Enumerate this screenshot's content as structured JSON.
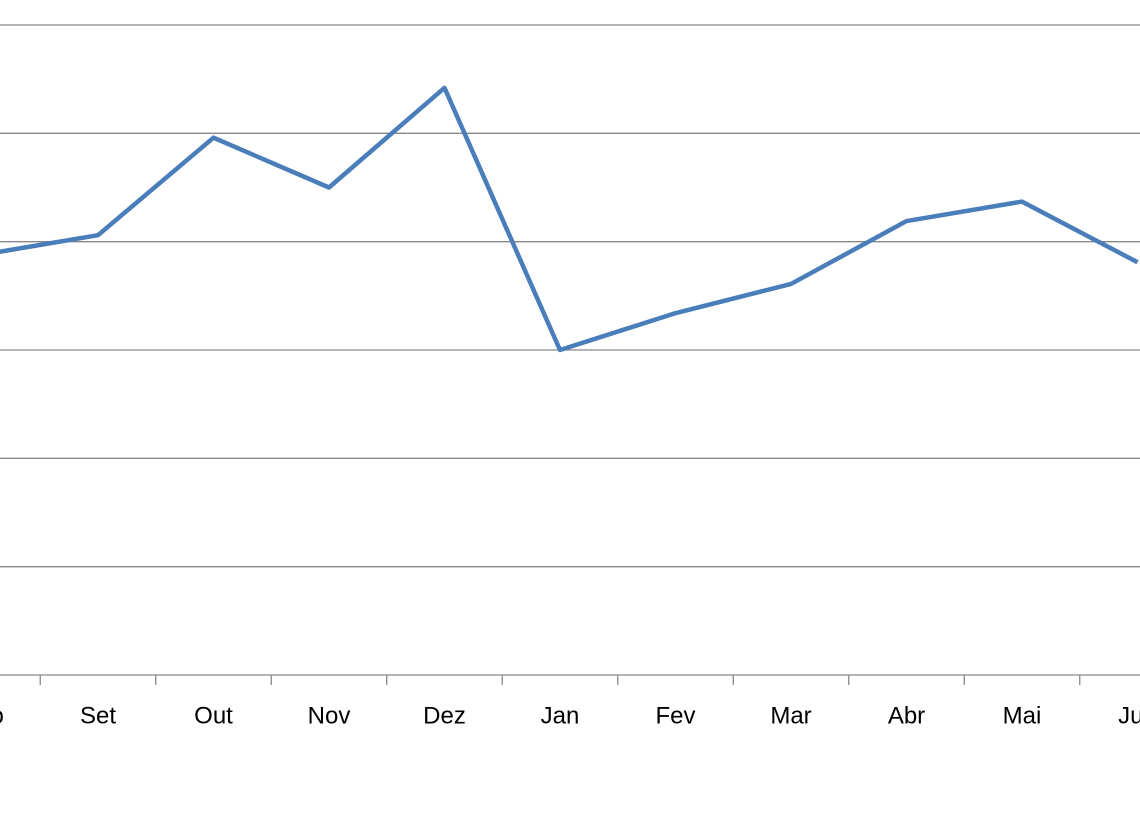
{
  "chart_data": {
    "type": "line",
    "categories": [
      "Ago",
      "Set",
      "Out",
      "Nov",
      "Dez",
      "Jan",
      "Fev",
      "Mar",
      "Abr",
      "Mai",
      "Jun"
    ],
    "series": [
      {
        "color": "#4a7ebb",
        "values": [
          3.88,
          4.06,
          4.96,
          4.5,
          5.42,
          3.0,
          3.34,
          3.61,
          4.19,
          4.37,
          3.81
        ]
      }
    ],
    "ylim": [
      0,
      6
    ],
    "yticks": [
      0,
      1,
      2,
      3,
      4,
      5,
      6
    ],
    "grid": true
  }
}
